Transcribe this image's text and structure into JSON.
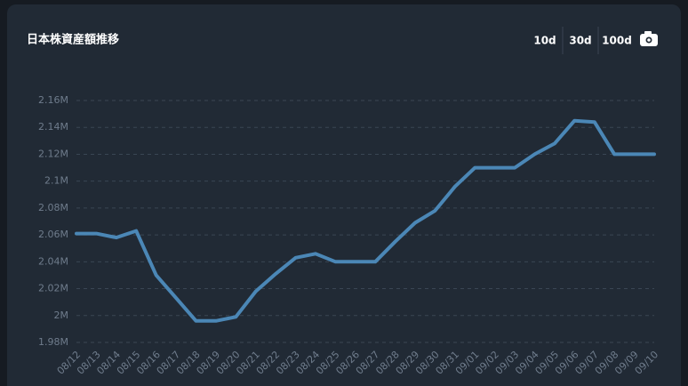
{
  "title": "日本株資産額推移",
  "buttons": [
    "10d",
    "30d",
    "100d"
  ],
  "chart_data": {
    "type": "line",
    "categories": [
      "08/12",
      "08/13",
      "08/14",
      "08/15",
      "08/16",
      "08/17",
      "08/18",
      "08/19",
      "08/20",
      "08/21",
      "08/22",
      "08/23",
      "08/24",
      "08/25",
      "08/26",
      "08/27",
      "08/28",
      "08/29",
      "08/30",
      "08/31",
      "09/01",
      "09/02",
      "09/03",
      "09/04",
      "09/05",
      "09/06",
      "09/07",
      "09/08",
      "09/09",
      "09/10"
    ],
    "series": [
      {
        "color": "#4b87b6",
        "values": [
          2061000,
          2061000,
          2058000,
          2063000,
          2030000,
          2013000,
          1996000,
          1996000,
          1999000,
          2018000,
          2031000,
          2043000,
          2046000,
          2040000,
          2040000,
          2040000,
          2055000,
          2069000,
          2078000,
          2096000,
          2110000,
          2110000,
          2110000,
          2120000,
          2128000,
          2145000,
          2144000,
          2120000,
          2120000,
          2120000
        ]
      }
    ],
    "ylim": [
      1980000,
      2160000
    ],
    "yticks": [
      {
        "value": 1980000,
        "label": "1.98M"
      },
      {
        "value": 2000000,
        "label": "2M"
      },
      {
        "value": 2020000,
        "label": "2.02M"
      },
      {
        "value": 2040000,
        "label": "2.04M"
      },
      {
        "value": 2060000,
        "label": "2.06M"
      },
      {
        "value": 2080000,
        "label": "2.08M"
      },
      {
        "value": 2100000,
        "label": "2.1M"
      },
      {
        "value": 2120000,
        "label": "2.12M"
      },
      {
        "value": 2140000,
        "label": "2.14M"
      },
      {
        "value": 2160000,
        "label": "2.16M"
      }
    ],
    "grid": true
  }
}
